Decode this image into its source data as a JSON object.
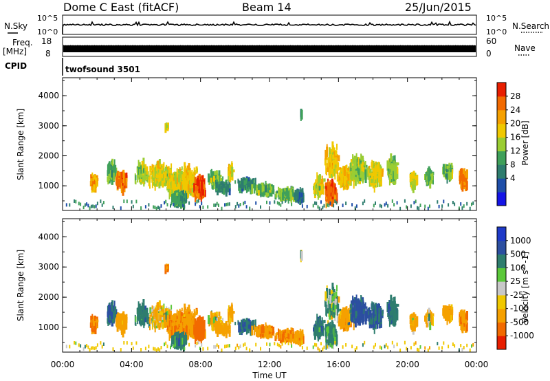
{
  "header": {
    "station": "Dome C East (fitACF)",
    "beam": "Beam 14",
    "date": "25/Jun/2015"
  },
  "strips": {
    "nsky_label": "N.Sky",
    "nsky_ticks": [
      "10^5",
      "10^0"
    ],
    "nsearch_label": "N.Search",
    "nsearch_ticks": [
      "10^5",
      "10^0"
    ],
    "freq_label_1": "Freq.",
    "freq_label_2": "[MHz]",
    "freq_ticks": [
      "18",
      "8"
    ],
    "nave_label": "Nave",
    "nave_ticks": [
      "60",
      "0"
    ],
    "cpid_label": "CPID",
    "cpid_value": "twofsound 3501"
  },
  "colors": {
    "power_scale": [
      "#1414e6",
      "#1e4ea8",
      "#2e7d6e",
      "#3fa05a",
      "#9acd32",
      "#f0c800",
      "#f5a000",
      "#f26a00",
      "#e81e00"
    ],
    "velocity_scale": [
      "#e81e00",
      "#f26a00",
      "#f5a000",
      "#f0c800",
      "#c8c8c8",
      "#5bc83a",
      "#2e7d6e",
      "#2c4fa0",
      "#1e3ac8"
    ]
  },
  "chart_data": [
    {
      "type": "heatmap",
      "name": "power-panel",
      "ylabel": "Slant Range [km]",
      "yticks": [
        "4000",
        "3000",
        "2000",
        "1000"
      ],
      "ylim": [
        180,
        4600
      ],
      "xlim": [
        0,
        24
      ],
      "colorbar_label": "Power [dB]",
      "colorbar_ticks": [
        "28",
        "24",
        "20",
        "16",
        "12",
        "8",
        "4"
      ],
      "value_range": [
        0,
        32
      ]
    },
    {
      "type": "heatmap",
      "name": "velocity-panel",
      "ylabel": "Slant Range [km]",
      "yticks": [
        "4000",
        "3000",
        "2000",
        "1000"
      ],
      "ylim": [
        180,
        4600
      ],
      "xlim": [
        0,
        24
      ],
      "colorbar_label": "Velocity [m s^-1]",
      "colorbar_ticks": [
        "1000",
        "500",
        "100",
        "25",
        "-25",
        "-100",
        "-500",
        "-1000"
      ]
    }
  ],
  "xaxis": {
    "label": "Time UT",
    "ticks": [
      "00:00",
      "04:00",
      "08:00",
      "12:00",
      "16:00",
      "20:00",
      "00:00"
    ]
  },
  "scatter_blobs": [
    {
      "t": 1.8,
      "r": 1100,
      "w": 0.3,
      "h": 300,
      "p": 22,
      "v": -500,
      "n": 70
    },
    {
      "t": 2.8,
      "r": 1450,
      "w": 0.4,
      "h": 400,
      "p": 14,
      "v": 500,
      "n": 110
    },
    {
      "t": 3.4,
      "r": 1150,
      "w": 0.4,
      "h": 350,
      "p": 26,
      "v": -300,
      "n": 140
    },
    {
      "t": 4.6,
      "r": 1400,
      "w": 0.5,
      "h": 450,
      "p": 16,
      "v": 300,
      "n": 140
    },
    {
      "t": 5.6,
      "r": 1350,
      "w": 0.8,
      "h": 450,
      "p": 18,
      "v": -100,
      "n": 260
    },
    {
      "t": 6.4,
      "r": 1050,
      "w": 0.5,
      "h": 450,
      "p": 18,
      "v": -400,
      "n": 180
    },
    {
      "t": 7.2,
      "r": 1150,
      "w": 0.8,
      "h": 600,
      "p": 20,
      "v": -400,
      "n": 280
    },
    {
      "t": 7.9,
      "r": 950,
      "w": 0.4,
      "h": 450,
      "p": 27,
      "v": -700,
      "n": 230
    },
    {
      "t": 6.7,
      "r": 560,
      "w": 0.6,
      "h": 250,
      "p": 12,
      "v": 300,
      "n": 130
    },
    {
      "t": 8.8,
      "r": 1200,
      "w": 0.5,
      "h": 300,
      "p": 14,
      "v": -100,
      "n": 90
    },
    {
      "t": 9.2,
      "r": 950,
      "w": 0.6,
      "h": 200,
      "p": 10,
      "v": -200,
      "n": 70
    },
    {
      "t": 9.7,
      "r": 1500,
      "w": 0.2,
      "h": 250,
      "p": 18,
      "v": -200,
      "n": 35
    },
    {
      "t": 10.6,
      "r": 1050,
      "w": 0.7,
      "h": 220,
      "p": 10,
      "v": 500,
      "n": 110
    },
    {
      "t": 11.7,
      "r": 870,
      "w": 0.8,
      "h": 170,
      "p": 14,
      "v": -400,
      "n": 140
    },
    {
      "t": 12.9,
      "r": 720,
      "w": 0.8,
      "h": 160,
      "p": 14,
      "v": -500,
      "n": 140
    },
    {
      "t": 13.7,
      "r": 650,
      "w": 0.4,
      "h": 220,
      "p": 8,
      "v": -300,
      "n": 70
    },
    {
      "t": 14.8,
      "r": 950,
      "w": 0.4,
      "h": 400,
      "p": 18,
      "v": 400,
      "n": 110
    },
    {
      "t": 15.5,
      "r": 780,
      "w": 0.4,
      "h": 450,
      "p": 27,
      "v": 200,
      "n": 220
    },
    {
      "t": 15.6,
      "r": 1800,
      "w": 0.5,
      "h": 600,
      "p": 20,
      "v": 100,
      "n": 170
    },
    {
      "t": 16.4,
      "r": 1250,
      "w": 0.5,
      "h": 400,
      "p": 20,
      "v": -300,
      "n": 160
    },
    {
      "t": 17.1,
      "r": 1550,
      "w": 0.7,
      "h": 550,
      "p": 16,
      "v": 600,
      "n": 220
    },
    {
      "t": 18.1,
      "r": 1350,
      "w": 0.5,
      "h": 500,
      "p": 18,
      "v": 500,
      "n": 160
    },
    {
      "t": 19.1,
      "r": 1500,
      "w": 0.4,
      "h": 550,
      "p": 15,
      "v": 400,
      "n": 120
    },
    {
      "t": 20.3,
      "r": 1150,
      "w": 0.3,
      "h": 300,
      "p": 18,
      "v": -200,
      "n": 80
    },
    {
      "t": 21.2,
      "r": 1300,
      "w": 0.3,
      "h": 300,
      "p": 14,
      "v": -100,
      "n": 60
    },
    {
      "t": 22.3,
      "r": 1450,
      "w": 0.4,
      "h": 300,
      "p": 14,
      "v": -300,
      "n": 70
    },
    {
      "t": 23.2,
      "r": 1200,
      "w": 0.3,
      "h": 350,
      "p": 24,
      "v": -400,
      "n": 90
    },
    {
      "t": 6.0,
      "r": 2960,
      "w": 0.1,
      "h": 60,
      "p": 18,
      "v": -500,
      "n": 10
    },
    {
      "t": 13.8,
      "r": 3350,
      "w": 0.05,
      "h": 120,
      "p": 12,
      "v": 100,
      "n": 6
    }
  ]
}
